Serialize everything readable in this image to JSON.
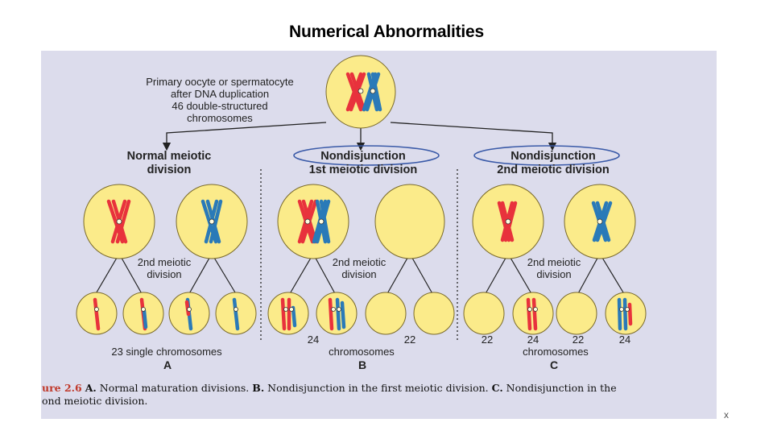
{
  "slide_title": "Numerical Abnormalities",
  "top_note": {
    "line1": "Primary oocyte or spermatocyte",
    "line2": "after DNA duplication",
    "line3": "46 double-structured",
    "line4": "chromosomes"
  },
  "columns": {
    "a": {
      "line1": "Normal meiotic",
      "line2": "division"
    },
    "b": {
      "line1": "Nondisjunction",
      "line2": "1st meiotic division"
    },
    "c": {
      "line1": "Nondisjunction",
      "line2": "2nd meiotic division"
    }
  },
  "second_division_label": {
    "line1": "2nd meiotic",
    "line2": "division"
  },
  "counts": {
    "a_total": "23 single chromosomes",
    "b_left": "24",
    "b_right": "22",
    "b_word": "chromosomes",
    "c_1": "22",
    "c_2": "24",
    "c_3": "22",
    "c_4": "24",
    "c_word": "chromosomes"
  },
  "panel_letters": {
    "a": "A",
    "b": "B",
    "c": "C"
  },
  "caption": {
    "fig": "ure 2.6",
    "a_key": "A.",
    "a_text": " Normal maturation divisions. ",
    "b_key": "B.",
    "b_text": " Nondisjunction in the first meiotic division. ",
    "c_key": "C.",
    "c_text": " Nondisjunction in the",
    "line2": "ond meiotic division."
  },
  "corner_mark": "x",
  "colors": {
    "panel": "#dcdcec",
    "cell_fill": "#fbeb8a",
    "cell_stroke": "#7a6a2a",
    "maternal_red": "#e8323c",
    "paternal_blue": "#2a7ab8",
    "highlight_oval": "#3a5aa8",
    "caption_fig": "#c0392b"
  }
}
